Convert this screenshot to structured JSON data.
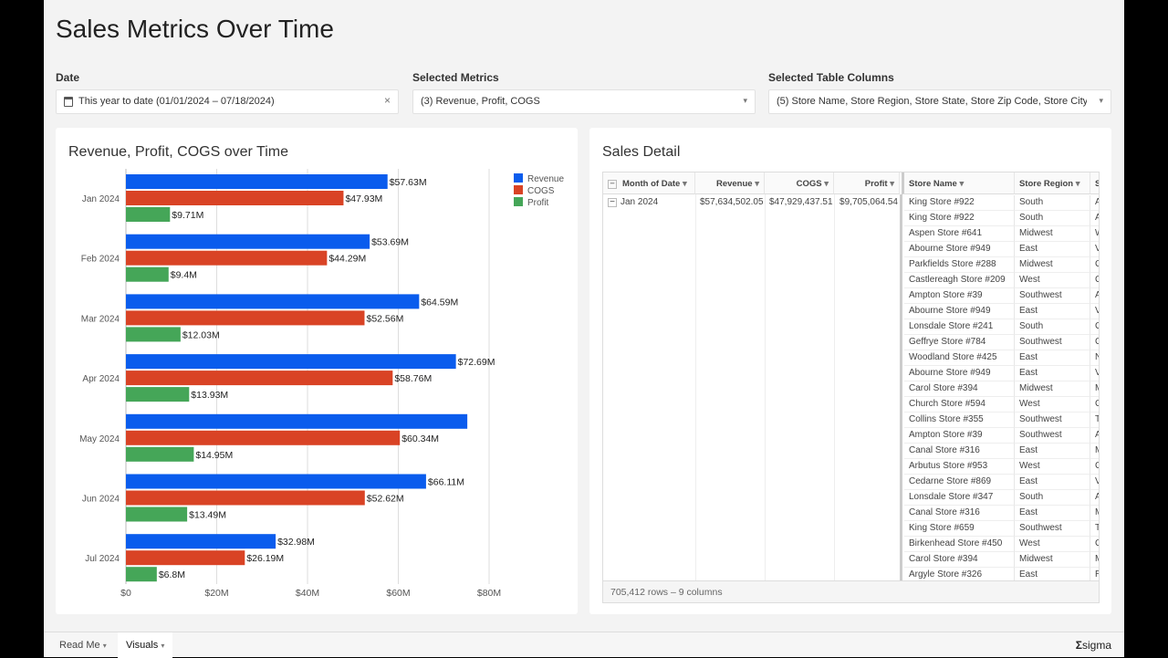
{
  "page": {
    "title": "Sales Metrics Over Time"
  },
  "filters": [
    {
      "label": "Date",
      "value": "This year to date (01/01/2024 – 07/18/2024)",
      "action": "×"
    },
    {
      "label": "Selected Metrics",
      "value": "(3) Revenue, Profit, COGS",
      "action": "▾"
    },
    {
      "label": "Selected Table Columns",
      "value": "(5) Store Name, Store Region, Store State, Store Zip Code, Store City",
      "action": "▾"
    }
  ],
  "chart_title": "Revenue, Profit, COGS over Time",
  "chart_data": {
    "type": "bar",
    "orientation": "horizontal",
    "title": "Revenue, Profit, COGS over Time",
    "categories": [
      "Jan 2024",
      "Feb 2024",
      "Mar 2024",
      "Apr 2024",
      "May 2024",
      "Jun 2024",
      "Jul 2024"
    ],
    "xlim": [
      0,
      80
    ],
    "xticks": [
      "$0",
      "$20M",
      "$40M",
      "$60M",
      "$80M"
    ],
    "legend_position": "top-right",
    "series": [
      {
        "name": "Revenue",
        "color": "#0a5ced",
        "values": [
          57.63,
          53.69,
          64.59,
          72.69,
          75.2,
          66.11,
          32.98
        ],
        "labels": [
          "$57.63M",
          "$53.69M",
          "$64.59M",
          "$72.69M",
          null,
          "$66.11M",
          "$32.98M"
        ]
      },
      {
        "name": "COGS",
        "color": "#d94325",
        "values": [
          47.93,
          44.29,
          52.56,
          58.76,
          60.34,
          52.62,
          26.19
        ],
        "labels": [
          "$47.93M",
          "$44.29M",
          "$52.56M",
          "$58.76M",
          "$60.34M",
          "$52.62M",
          "$26.19M"
        ]
      },
      {
        "name": "Profit",
        "color": "#45a658",
        "values": [
          9.71,
          9.4,
          12.03,
          13.93,
          14.95,
          13.49,
          6.8
        ],
        "labels": [
          "$9.71M",
          "$9.4M",
          "$12.03M",
          "$13.93M",
          "$14.95M",
          "$13.49M",
          "$6.8M"
        ]
      }
    ]
  },
  "table": {
    "title": "Sales Detail",
    "headers": [
      "Month of Date",
      "Revenue",
      "COGS",
      "Profit",
      "Store Name",
      "Store Region",
      "S"
    ],
    "group": {
      "month": "Jan 2024",
      "revenue": "$57,634,502.05",
      "cogs": "$47,929,437.51",
      "profit": "$9,705,064.54"
    },
    "rows": [
      [
        "King Store #922",
        "South",
        "A"
      ],
      [
        "King Store #922",
        "South",
        "A"
      ],
      [
        "Aspen Store #641",
        "Midwest",
        "W"
      ],
      [
        "Abourne Store #949",
        "East",
        "V"
      ],
      [
        "Parkfields Store #288",
        "Midwest",
        "C"
      ],
      [
        "Castlereagh Store #209",
        "West",
        "C"
      ],
      [
        "Ampton Store #39",
        "Southwest",
        "A"
      ],
      [
        "Abourne Store #949",
        "East",
        "V"
      ],
      [
        "Lonsdale Store #241",
        "South",
        "G"
      ],
      [
        "Geffrye Store #784",
        "Southwest",
        "C"
      ],
      [
        "Woodland Store #425",
        "East",
        "N"
      ],
      [
        "Abourne Store #949",
        "East",
        "V"
      ],
      [
        "Carol Store #394",
        "Midwest",
        "M"
      ],
      [
        "Church Store #594",
        "West",
        "C"
      ],
      [
        "Collins Store #355",
        "Southwest",
        "T"
      ],
      [
        "Ampton Store #39",
        "Southwest",
        "A"
      ],
      [
        "Canal Store #316",
        "East",
        "M"
      ],
      [
        "Arbutus Store #953",
        "West",
        "C"
      ],
      [
        "Cedarne Store #869",
        "East",
        "V"
      ],
      [
        "Lonsdale Store #347",
        "South",
        "A"
      ],
      [
        "Canal Store #316",
        "East",
        "M"
      ],
      [
        "King Store #659",
        "Southwest",
        "T"
      ],
      [
        "Birkenhead Store #450",
        "West",
        "C"
      ],
      [
        "Carol Store #394",
        "Midwest",
        "M"
      ],
      [
        "Argyle Store #326",
        "East",
        "R"
      ]
    ],
    "footer": "705,412 rows – 9 columns"
  },
  "tabs": [
    {
      "label": "Read Me"
    },
    {
      "label": "Visuals"
    }
  ],
  "brand": "sigma"
}
